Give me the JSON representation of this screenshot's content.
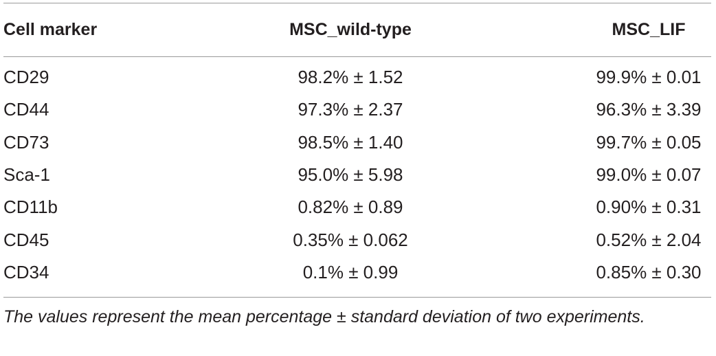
{
  "table": {
    "header": [
      "Cell marker",
      "MSC_wild-type",
      "MSC_LIF"
    ],
    "rows": [
      [
        "CD29",
        "98.2% ± 1.52",
        "99.9% ± 0.01"
      ],
      [
        "CD44",
        "97.3% ± 2.37",
        "96.3% ± 3.39"
      ],
      [
        "CD73",
        "98.5% ± 1.40",
        "99.7% ± 0.05"
      ],
      [
        "Sca-1",
        "95.0% ± 5.98",
        "99.0% ± 0.07"
      ],
      [
        "CD11b",
        "0.82% ± 0.89",
        "0.90% ± 0.31"
      ],
      [
        "CD45",
        "0.35% ± 0.062",
        "0.52% ± 2.04"
      ],
      [
        "CD34",
        "0.1% ± 0.99",
        "0.85% ± 0.30"
      ]
    ],
    "footnote": "The values represent the mean percentage ± standard deviation of two experiments."
  }
}
